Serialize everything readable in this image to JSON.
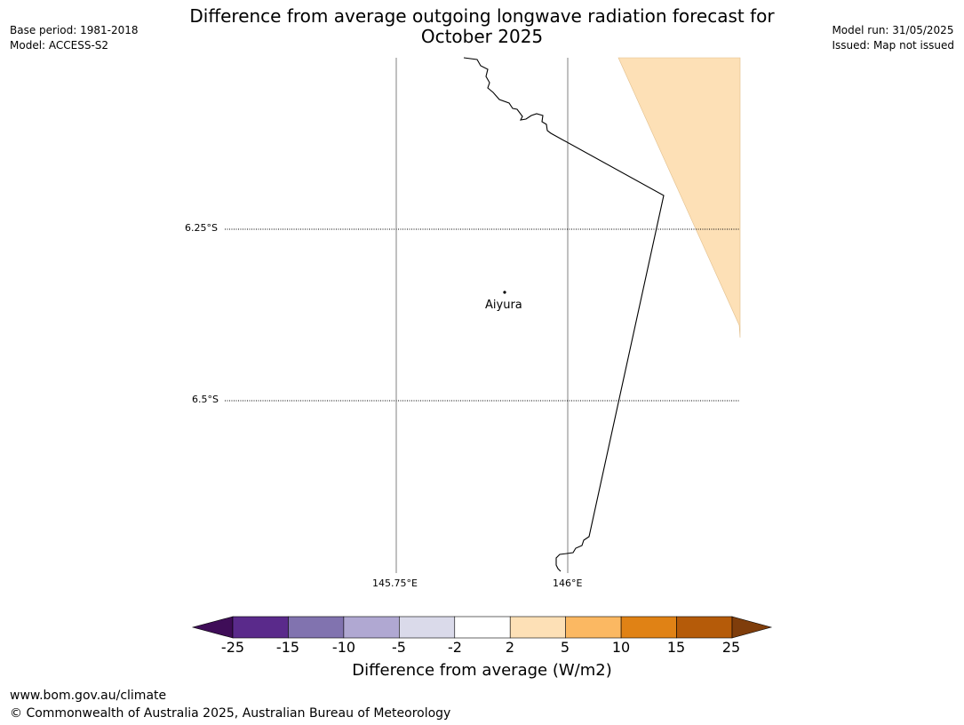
{
  "title_line1": "Difference from average outgoing longwave radiation forecast for",
  "title_line2": "October 2025",
  "meta": {
    "base_period": "Base period: 1981-2018",
    "model": "Model: ACCESS-S2",
    "model_run": "Model run: 31/05/2025",
    "issued": "Issued: Map not issued"
  },
  "map": {
    "lat_labels": [
      "6.25°S",
      "6.5°S"
    ],
    "lon_labels": [
      "145.75°E",
      "146°E"
    ],
    "places": [
      {
        "name": "Aiyura"
      }
    ],
    "shaded_category": "2 to 5",
    "shaded_color": "#fde0b6"
  },
  "colorbar": {
    "title": "Difference from average (W/m2)",
    "ticks": [
      "-25",
      "-15",
      "-10",
      "-5",
      "-2",
      "2",
      "5",
      "10",
      "15",
      "25"
    ],
    "colors": [
      "#3f0d58",
      "#5a2a8b",
      "#8173af",
      "#b0a8d2",
      "#dadaea",
      "#ffffff",
      "#fde0b6",
      "#fbb862",
      "#e08215",
      "#b55b09",
      "#7f3d0b"
    ]
  },
  "footer": {
    "url": "www.bom.gov.au/climate",
    "copyright": "© Commonwealth of Australia 2025, Australian Bureau of Meteorology"
  }
}
